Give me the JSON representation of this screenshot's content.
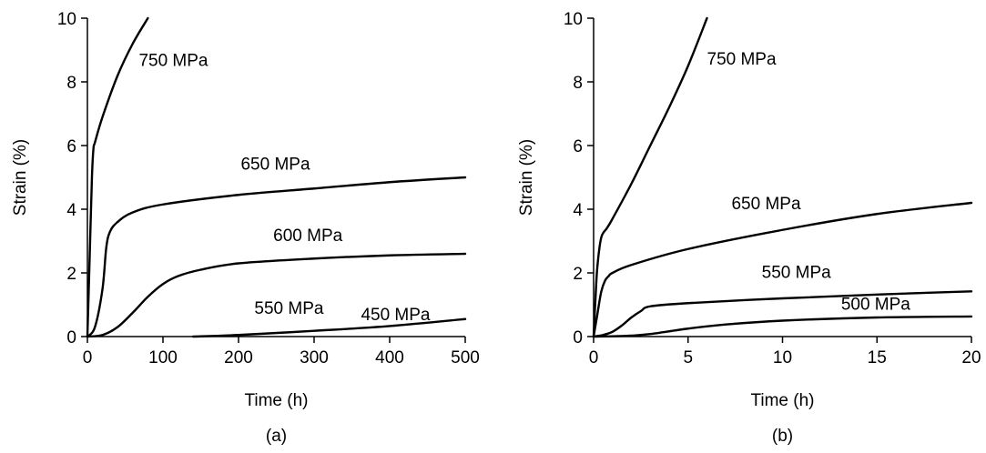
{
  "chart_data": [
    {
      "type": "line",
      "panel_label": "(a)",
      "xlabel": "Time (h)",
      "ylabel": "Strain (%)",
      "xlim": [
        0,
        500
      ],
      "ylim": [
        0,
        10
      ],
      "xticks": [
        0,
        100,
        200,
        300,
        400,
        500
      ],
      "yticks": [
        0,
        2,
        4,
        6,
        8,
        10
      ],
      "grid": false,
      "series": [
        {
          "name": "750 MPa",
          "x": [
            0,
            3,
            6,
            8,
            10,
            20,
            40,
            60,
            80
          ],
          "y": [
            0,
            2.5,
            5.0,
            5.9,
            6.1,
            6.9,
            8.2,
            9.2,
            10.0
          ]
        },
        {
          "name": "650 MPa",
          "x": [
            0,
            10,
            20,
            25,
            30,
            40,
            60,
            100,
            200,
            300,
            400,
            500
          ],
          "y": [
            0,
            0.3,
            1.5,
            2.8,
            3.3,
            3.6,
            3.9,
            4.15,
            4.45,
            4.65,
            4.85,
            5.0
          ]
        },
        {
          "name": "600 MPa",
          "x": [
            0,
            20,
            40,
            60,
            80,
            100,
            120,
            150,
            200,
            300,
            400,
            500
          ],
          "y": [
            0,
            0.05,
            0.3,
            0.75,
            1.25,
            1.65,
            1.9,
            2.1,
            2.3,
            2.45,
            2.55,
            2.6
          ]
        },
        {
          "name": "550 MPa",
          "x": [
            140,
            200,
            300,
            400,
            500
          ],
          "y": [
            0,
            0.05,
            0.18,
            0.33,
            0.55
          ]
        }
      ],
      "annotations": [
        {
          "text": "750 MPa",
          "x": 68,
          "y": 8.5
        },
        {
          "text": "650 MPa",
          "x": 203,
          "y": 5.25
        },
        {
          "text": "600 MPa",
          "x": 246,
          "y": 3.0
        },
        {
          "text": "550 MPa",
          "x": 221,
          "y": 0.72
        },
        {
          "text": "450 MPa",
          "x": 362,
          "y": 0.52
        }
      ]
    },
    {
      "type": "line",
      "panel_label": "(b)",
      "xlabel": "Time (h)",
      "ylabel": "Strain (%)",
      "xlim": [
        0,
        20
      ],
      "ylim": [
        0,
        10
      ],
      "xticks": [
        0,
        5,
        10,
        15,
        20
      ],
      "yticks": [
        0,
        2,
        4,
        6,
        8,
        10
      ],
      "grid": false,
      "series": [
        {
          "name": "750 MPa",
          "x": [
            0,
            0.1,
            0.2,
            0.4,
            0.7,
            1,
            2,
            3,
            4,
            5,
            6
          ],
          "y": [
            0,
            1.2,
            2.2,
            3.1,
            3.4,
            3.7,
            4.8,
            6.0,
            7.2,
            8.5,
            10.0
          ]
        },
        {
          "name": "650 MPa",
          "x": [
            0,
            0.2,
            0.4,
            0.6,
            0.8,
            1,
            2,
            5,
            10,
            15,
            20
          ],
          "y": [
            0,
            0.7,
            1.4,
            1.75,
            1.9,
            2.0,
            2.25,
            2.75,
            3.35,
            3.85,
            4.2
          ]
        },
        {
          "name": "550 MPa",
          "x": [
            0,
            0.5,
            1,
            1.5,
            2,
            2.5,
            3,
            5,
            10,
            15,
            20
          ],
          "y": [
            0,
            0.05,
            0.15,
            0.35,
            0.6,
            0.8,
            0.95,
            1.05,
            1.2,
            1.32,
            1.42
          ]
        },
        {
          "name": "500 MPa",
          "x": [
            0,
            1,
            2,
            3,
            5,
            7,
            10,
            15,
            20
          ],
          "y": [
            0,
            0.01,
            0.03,
            0.08,
            0.25,
            0.38,
            0.5,
            0.6,
            0.63
          ]
        }
      ],
      "annotations": [
        {
          "text": "750 MPa",
          "x": 6.0,
          "y": 8.55
        },
        {
          "text": "650 MPa",
          "x": 7.3,
          "y": 4.0
        },
        {
          "text": "550 MPa",
          "x": 8.9,
          "y": 1.85
        },
        {
          "text": "500 MPa",
          "x": 13.1,
          "y": 0.85
        }
      ]
    }
  ]
}
